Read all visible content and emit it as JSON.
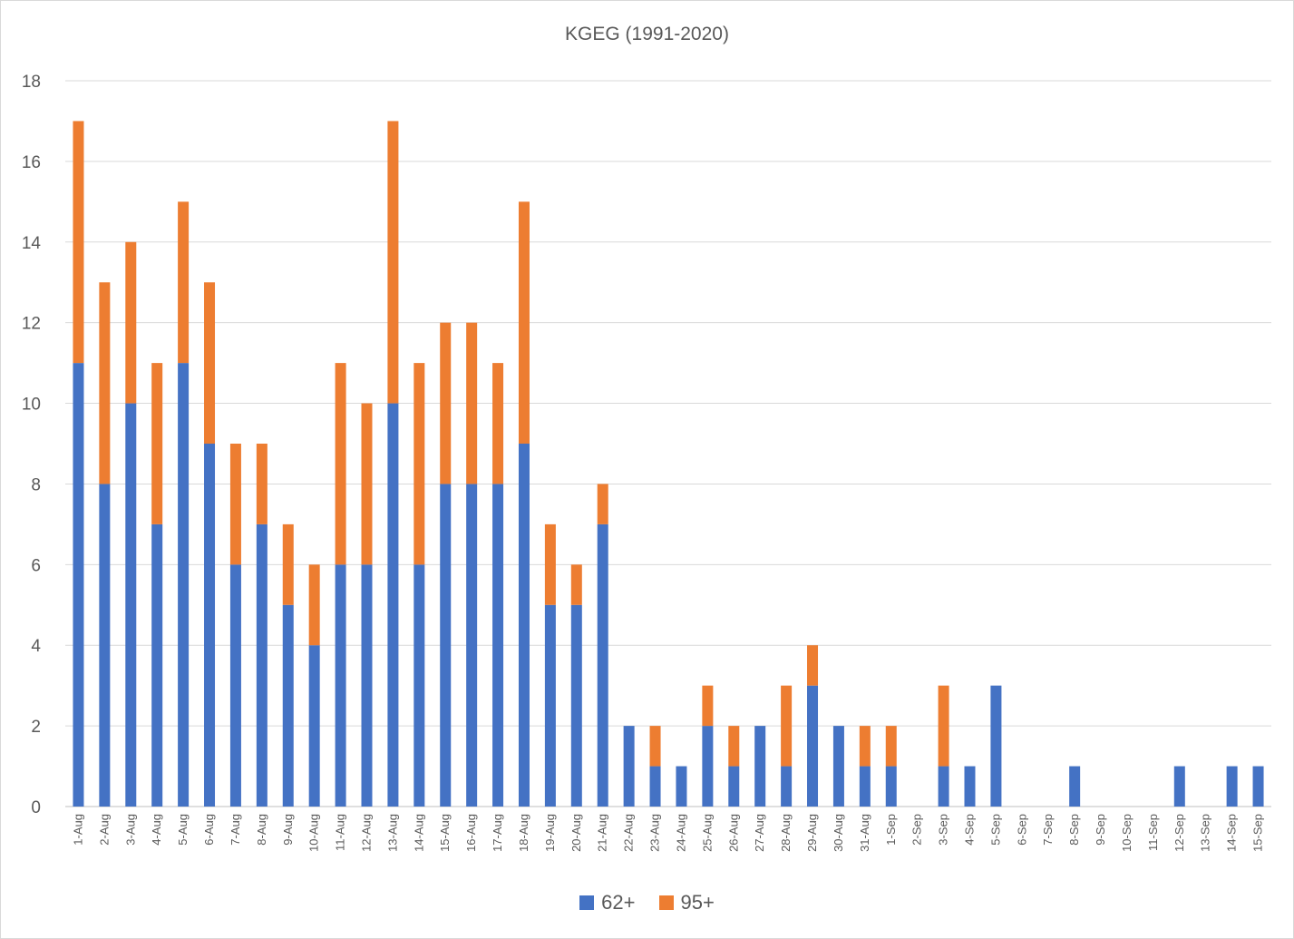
{
  "chart_data": {
    "type": "bar",
    "stacked": true,
    "title": "KGEG (1991-2020)",
    "xlabel": "",
    "ylabel": "",
    "ylim": [
      0,
      18
    ],
    "yticks": [
      0,
      2,
      4,
      6,
      8,
      10,
      12,
      14,
      16,
      18
    ],
    "grid": true,
    "legend_position": "bottom",
    "categories": [
      "1-Aug",
      "2-Aug",
      "3-Aug",
      "4-Aug",
      "5-Aug",
      "6-Aug",
      "7-Aug",
      "8-Aug",
      "9-Aug",
      "10-Aug",
      "11-Aug",
      "12-Aug",
      "13-Aug",
      "14-Aug",
      "15-Aug",
      "16-Aug",
      "17-Aug",
      "18-Aug",
      "19-Aug",
      "20-Aug",
      "21-Aug",
      "22-Aug",
      "23-Aug",
      "24-Aug",
      "25-Aug",
      "26-Aug",
      "27-Aug",
      "28-Aug",
      "29-Aug",
      "30-Aug",
      "31-Aug",
      "1-Sep",
      "2-Sep",
      "3-Sep",
      "4-Sep",
      "5-Sep",
      "6-Sep",
      "7-Sep",
      "8-Sep",
      "9-Sep",
      "10-Sep",
      "11-Sep",
      "12-Sep",
      "13-Sep",
      "14-Sep",
      "15-Sep"
    ],
    "series": [
      {
        "name": "62+",
        "color": "#4472C4",
        "values": [
          11,
          8,
          10,
          7,
          11,
          9,
          6,
          7,
          5,
          4,
          6,
          6,
          10,
          6,
          8,
          8,
          8,
          9,
          5,
          5,
          7,
          2,
          1,
          1,
          2,
          1,
          2,
          1,
          3,
          2,
          1,
          1,
          0,
          1,
          1,
          3,
          0,
          0,
          1,
          0,
          0,
          0,
          1,
          0,
          1,
          1
        ]
      },
      {
        "name": "95+",
        "color": "#ED7D31",
        "values": [
          6,
          5,
          4,
          4,
          4,
          4,
          3,
          2,
          2,
          2,
          5,
          4,
          7,
          5,
          4,
          4,
          3,
          6,
          2,
          1,
          1,
          0,
          1,
          0,
          1,
          1,
          0,
          2,
          1,
          0,
          1,
          1,
          0,
          2,
          0,
          0,
          0,
          0,
          0,
          0,
          0,
          0,
          0,
          0,
          0,
          0
        ]
      }
    ]
  }
}
